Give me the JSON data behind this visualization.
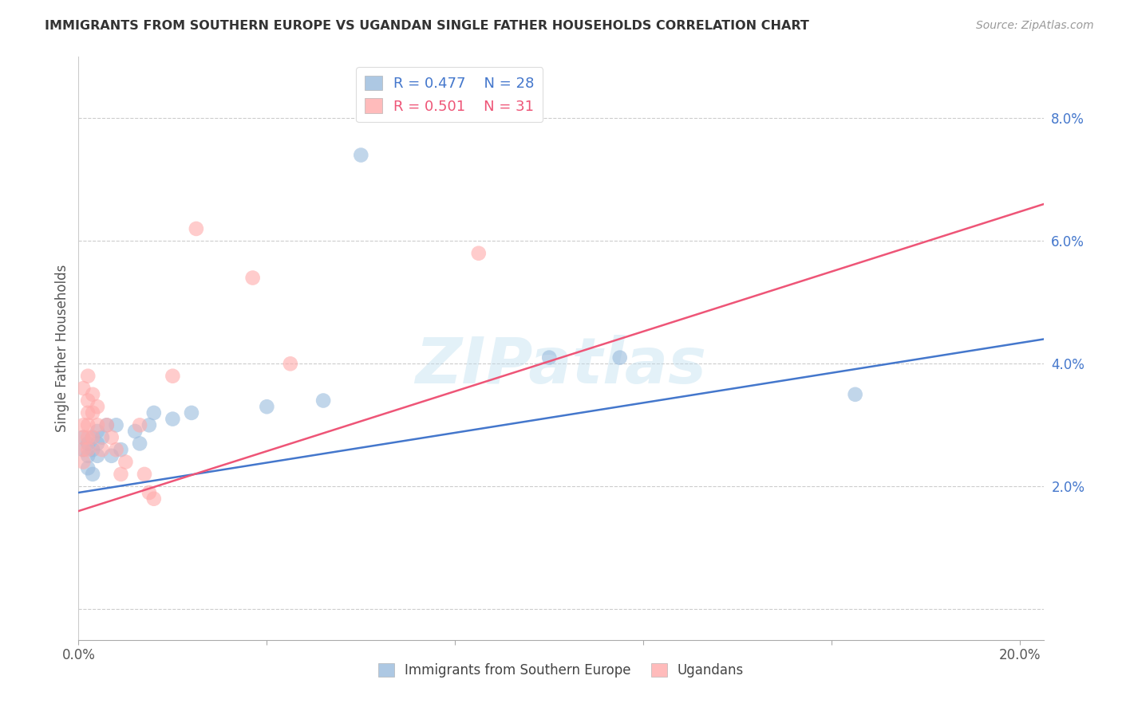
{
  "title": "IMMIGRANTS FROM SOUTHERN EUROPE VS UGANDAN SINGLE FATHER HOUSEHOLDS CORRELATION CHART",
  "source": "Source: ZipAtlas.com",
  "ylabel": "Single Father Households",
  "y_ticks": [
    0.0,
    0.02,
    0.04,
    0.06,
    0.08
  ],
  "y_tick_labels": [
    "",
    "2.0%",
    "4.0%",
    "6.0%",
    "8.0%"
  ],
  "x_ticks": [
    0.0,
    0.04,
    0.08,
    0.12,
    0.16,
    0.2
  ],
  "x_tick_labels": [
    "0.0%",
    "",
    "",
    "",
    "",
    "20.0%"
  ],
  "xlim": [
    0.0,
    0.205
  ],
  "ylim": [
    -0.005,
    0.09
  ],
  "legend_blue_r": "R = 0.477",
  "legend_blue_n": "N = 28",
  "legend_pink_r": "R = 0.501",
  "legend_pink_n": "N = 31",
  "blue_color": "#99BBDD",
  "pink_color": "#FFAAAA",
  "blue_line_color": "#4477CC",
  "pink_line_color": "#EE5577",
  "blue_scatter": [
    [
      0.001,
      0.026
    ],
    [
      0.001,
      0.028
    ],
    [
      0.002,
      0.025
    ],
    [
      0.002,
      0.027
    ],
    [
      0.002,
      0.023
    ],
    [
      0.003,
      0.026
    ],
    [
      0.003,
      0.028
    ],
    [
      0.003,
      0.022
    ],
    [
      0.004,
      0.027
    ],
    [
      0.004,
      0.025
    ],
    [
      0.004,
      0.029
    ],
    [
      0.005,
      0.028
    ],
    [
      0.006,
      0.03
    ],
    [
      0.007,
      0.025
    ],
    [
      0.008,
      0.03
    ],
    [
      0.009,
      0.026
    ],
    [
      0.012,
      0.029
    ],
    [
      0.013,
      0.027
    ],
    [
      0.015,
      0.03
    ],
    [
      0.016,
      0.032
    ],
    [
      0.02,
      0.031
    ],
    [
      0.024,
      0.032
    ],
    [
      0.04,
      0.033
    ],
    [
      0.052,
      0.034
    ],
    [
      0.06,
      0.074
    ],
    [
      0.1,
      0.041
    ],
    [
      0.115,
      0.041
    ],
    [
      0.165,
      0.035
    ]
  ],
  "pink_scatter": [
    [
      0.001,
      0.03
    ],
    [
      0.001,
      0.028
    ],
    [
      0.001,
      0.026
    ],
    [
      0.001,
      0.024
    ],
    [
      0.001,
      0.036
    ],
    [
      0.002,
      0.032
    ],
    [
      0.002,
      0.03
    ],
    [
      0.002,
      0.028
    ],
    [
      0.002,
      0.026
    ],
    [
      0.002,
      0.034
    ],
    [
      0.002,
      0.038
    ],
    [
      0.003,
      0.028
    ],
    [
      0.003,
      0.032
    ],
    [
      0.003,
      0.035
    ],
    [
      0.004,
      0.03
    ],
    [
      0.004,
      0.033
    ],
    [
      0.005,
      0.026
    ],
    [
      0.006,
      0.03
    ],
    [
      0.007,
      0.028
    ],
    [
      0.008,
      0.026
    ],
    [
      0.009,
      0.022
    ],
    [
      0.01,
      0.024
    ],
    [
      0.013,
      0.03
    ],
    [
      0.014,
      0.022
    ],
    [
      0.015,
      0.019
    ],
    [
      0.016,
      0.018
    ],
    [
      0.02,
      0.038
    ],
    [
      0.025,
      0.062
    ],
    [
      0.037,
      0.054
    ],
    [
      0.045,
      0.04
    ],
    [
      0.085,
      0.058
    ]
  ],
  "blue_line_x": [
    0.0,
    0.205
  ],
  "blue_line_y": [
    0.019,
    0.044
  ],
  "pink_line_x": [
    0.0,
    0.205
  ],
  "pink_line_y": [
    0.016,
    0.066
  ],
  "watermark_text": "ZIPatlas",
  "background_color": "#ffffff",
  "grid_color": "#cccccc",
  "tick_color_y": "#4477CC",
  "tick_color_x": "#555555"
}
